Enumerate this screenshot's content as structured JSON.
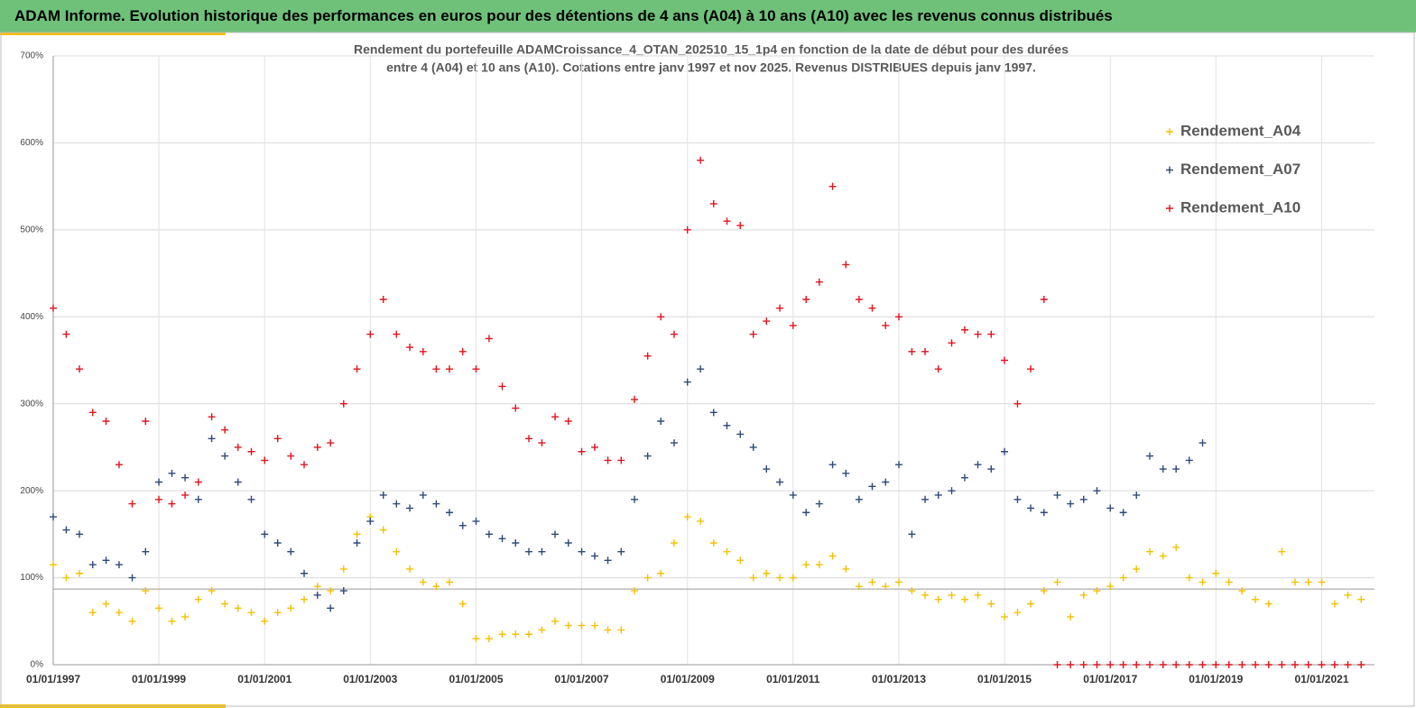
{
  "header": {
    "title": "ADAM Informe. Evolution historique des performances en euros pour des détentions de 4 ans (A04) à 10 ans (A10) avec les revenus connus distribués"
  },
  "chart_data": {
    "type": "scatter",
    "title": [
      "Rendement du portefeuille ADAMCroissance_4_OTAN_202510_15_1p4  en fonction de la date de début pour des durées",
      "entre 4 (A04) et 10 ans (A10). Cotations entre janv 1997 et nov 2025. Revenus DISTRIBUES depuis janv 1997."
    ],
    "x": [
      "1997-01-01",
      "1997-04-01",
      "1997-07-01",
      "1997-10-01",
      "1998-01-01",
      "1998-04-01",
      "1998-07-01",
      "1998-10-01",
      "1999-01-01",
      "1999-04-01",
      "1999-07-01",
      "1999-10-01",
      "2000-01-01",
      "2000-04-01",
      "2000-07-01",
      "2000-10-01",
      "2001-01-01",
      "2001-04-01",
      "2001-07-01",
      "2001-10-01",
      "2002-01-01",
      "2002-04-01",
      "2002-07-01",
      "2002-10-01",
      "2003-01-01",
      "2003-04-01",
      "2003-07-01",
      "2003-10-01",
      "2004-01-01",
      "2004-04-01",
      "2004-07-01",
      "2004-10-01",
      "2005-01-01",
      "2005-04-01",
      "2005-07-01",
      "2005-10-01",
      "2006-01-01",
      "2006-04-01",
      "2006-07-01",
      "2006-10-01",
      "2007-01-01",
      "2007-04-01",
      "2007-07-01",
      "2007-10-01",
      "2008-01-01",
      "2008-04-01",
      "2008-07-01",
      "2008-10-01",
      "2009-01-01",
      "2009-04-01",
      "2009-07-01",
      "2009-10-01",
      "2010-01-01",
      "2010-04-01",
      "2010-07-01",
      "2010-10-01",
      "2011-01-01",
      "2011-04-01",
      "2011-07-01",
      "2011-10-01",
      "2012-01-01",
      "2012-04-01",
      "2012-07-01",
      "2012-10-01",
      "2013-01-01",
      "2013-04-01",
      "2013-07-01",
      "2013-10-01",
      "2014-01-01",
      "2014-04-01",
      "2014-07-01",
      "2014-10-01",
      "2015-01-01",
      "2015-04-01",
      "2015-07-01",
      "2015-10-01",
      "2016-01-01",
      "2016-04-01",
      "2016-07-01",
      "2016-10-01",
      "2017-01-01",
      "2017-04-01",
      "2017-07-01",
      "2017-10-01",
      "2018-01-01",
      "2018-04-01",
      "2018-07-01",
      "2018-10-01",
      "2019-01-01",
      "2019-04-01",
      "2019-07-01",
      "2019-10-01",
      "2020-01-01",
      "2020-04-01",
      "2020-07-01",
      "2020-10-01",
      "2021-01-01",
      "2021-04-01",
      "2021-07-01",
      "2021-10-01"
    ],
    "series": [
      {
        "name": "Rendement_A04",
        "color": "#f5c000",
        "values": [
          115,
          100,
          105,
          60,
          70,
          60,
          50,
          85,
          65,
          50,
          55,
          75,
          85,
          70,
          65,
          60,
          50,
          60,
          65,
          75,
          90,
          85,
          110,
          150,
          170,
          155,
          130,
          110,
          95,
          90,
          95,
          70,
          30,
          30,
          35,
          35,
          35,
          40,
          50,
          45,
          45,
          45,
          40,
          40,
          85,
          100,
          105,
          140,
          170,
          165,
          140,
          130,
          120,
          100,
          105,
          100,
          100,
          115,
          115,
          125,
          110,
          90,
          95,
          90,
          95,
          85,
          80,
          75,
          80,
          75,
          80,
          70,
          55,
          60,
          70,
          85,
          95,
          55,
          80,
          85,
          90,
          100,
          110,
          130,
          125,
          135,
          100,
          95,
          105,
          95,
          85,
          75,
          70,
          130,
          95,
          95,
          95,
          70,
          80,
          75
        ]
      },
      {
        "name": "Rendement_A07",
        "color": "#2e4a7a",
        "values": [
          170,
          155,
          150,
          115,
          120,
          115,
          100,
          130,
          210,
          220,
          215,
          190,
          260,
          240,
          210,
          190,
          150,
          140,
          130,
          105,
          80,
          65,
          85,
          140,
          165,
          195,
          185,
          180,
          195,
          185,
          175,
          160,
          165,
          150,
          145,
          140,
          130,
          130,
          150,
          140,
          130,
          125,
          120,
          130,
          190,
          240,
          280,
          255,
          325,
          340,
          290,
          275,
          265,
          250,
          225,
          210,
          195,
          175,
          185,
          230,
          220,
          190,
          205,
          210,
          230,
          150,
          190,
          195,
          200,
          215,
          230,
          225,
          245,
          190,
          180,
          175,
          195,
          185,
          190,
          200,
          180,
          175,
          195,
          240,
          225,
          225,
          235,
          255,
          null,
          null,
          null,
          null,
          null,
          null,
          null,
          null,
          null,
          null,
          null,
          null
        ]
      },
      {
        "name": "Rendement_A10",
        "color": "#e0141e",
        "values": [
          410,
          380,
          340,
          290,
          280,
          230,
          185,
          280,
          190,
          185,
          195,
          210,
          285,
          270,
          250,
          245,
          235,
          260,
          240,
          230,
          250,
          255,
          300,
          340,
          380,
          420,
          380,
          365,
          360,
          340,
          340,
          360,
          340,
          375,
          320,
          295,
          260,
          255,
          285,
          280,
          245,
          250,
          235,
          235,
          305,
          355,
          400,
          380,
          500,
          580,
          530,
          510,
          505,
          380,
          395,
          410,
          390,
          420,
          440,
          550,
          460,
          420,
          410,
          390,
          400,
          360,
          360,
          340,
          370,
          385,
          380,
          380,
          350,
          300,
          340,
          420,
          0,
          0,
          0,
          0,
          0,
          0,
          0,
          0,
          0,
          0,
          0,
          0,
          0,
          0,
          0,
          0,
          0,
          0,
          0,
          0,
          0,
          0,
          0,
          0
        ]
      }
    ],
    "xlim": [
      "1997-01-01",
      "2022-01-01"
    ],
    "xticks": [
      {
        "value": "1997-01-01",
        "label": "01/01/1997"
      },
      {
        "value": "1999-01-01",
        "label": "01/01/1999"
      },
      {
        "value": "2001-01-01",
        "label": "01/01/2001"
      },
      {
        "value": "2003-01-01",
        "label": "01/01/2003"
      },
      {
        "value": "2005-01-01",
        "label": "01/01/2005"
      },
      {
        "value": "2007-01-01",
        "label": "01/01/2007"
      },
      {
        "value": "2009-01-01",
        "label": "01/01/2009"
      },
      {
        "value": "2011-01-01",
        "label": "01/01/2011"
      },
      {
        "value": "2013-01-01",
        "label": "01/01/2013"
      },
      {
        "value": "2015-01-01",
        "label": "01/01/2015"
      },
      {
        "value": "2017-01-01",
        "label": "01/01/2017"
      },
      {
        "value": "2019-01-01",
        "label": "01/01/2019"
      },
      {
        "value": "2021-01-01",
        "label": "01/01/2021"
      }
    ],
    "ylim": [
      0,
      700
    ],
    "yticks": [
      {
        "value": 0,
        "label": "0%"
      },
      {
        "value": 100,
        "label": "100%"
      },
      {
        "value": 200,
        "label": "200%"
      },
      {
        "value": 300,
        "label": "300%"
      },
      {
        "value": 400,
        "label": "400%"
      },
      {
        "value": 500,
        "label": "500%"
      },
      {
        "value": 600,
        "label": "600%"
      },
      {
        "value": 700,
        "label": "700%"
      }
    ],
    "hline": 87,
    "grid": true,
    "legend": "upper right"
  }
}
